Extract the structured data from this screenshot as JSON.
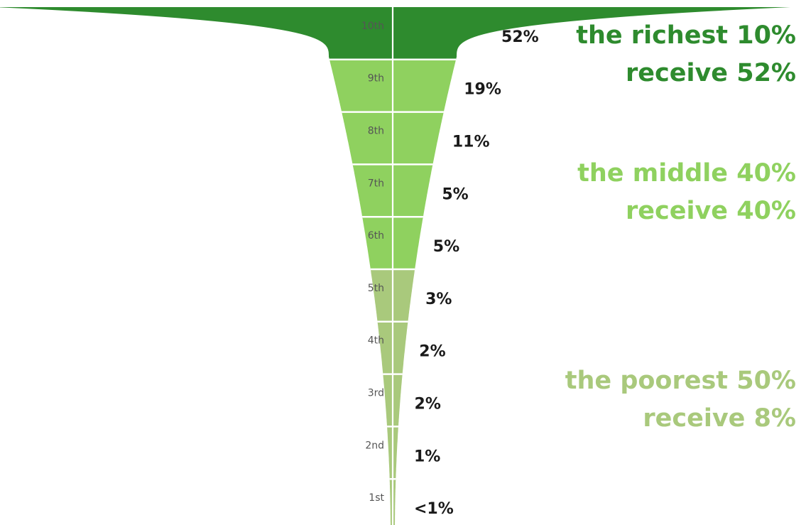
{
  "chart_data": {
    "type": "funnel",
    "categories": [
      "10th",
      "9th",
      "8th",
      "7th",
      "6th",
      "5th",
      "4th",
      "3rd",
      "2nd",
      "1st"
    ],
    "value_labels": [
      "52%",
      "19%",
      "11%",
      "5%",
      "5%",
      "3%",
      "2%",
      "2%",
      "1%",
      "<1%"
    ],
    "values": [
      52,
      19,
      11,
      5,
      5,
      3,
      2,
      2,
      1,
      0.5
    ],
    "groups": [
      "richest",
      "middle",
      "middle",
      "middle",
      "middle",
      "poorest",
      "poorest",
      "poorest",
      "poorest",
      "poorest"
    ],
    "colors": {
      "richest": "#2e8b2e",
      "middle": "#8fd15f",
      "poorest": "#a9c97c"
    }
  },
  "annotations": [
    {
      "line1": "the richest 10%",
      "line2": "receive 52%",
      "color": "#2e8b2e"
    },
    {
      "line1": "the middle 40%",
      "line2": "receive 40%",
      "color": "#8fd15f"
    },
    {
      "line1": "the poorest 50%",
      "line2": "receive 8%",
      "color": "#a9c97c"
    }
  ]
}
